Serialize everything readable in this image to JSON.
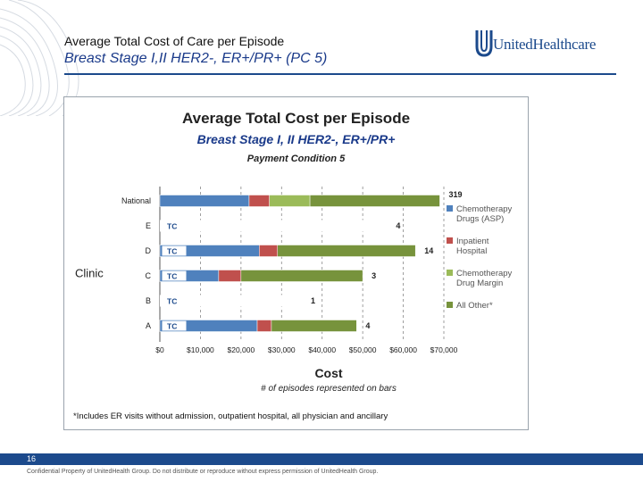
{
  "slide": {
    "title": "Average Total Cost of Care per Episode",
    "subtitle": "Breast Stage I,II HER2-, ER+/PR+ (PC 5)",
    "logo_text": "UnitedHealthcare",
    "page_number": "16",
    "confidential": "Confidential Property of UnitedHealth Group. Do not distribute or reproduce without express permission of UnitedHealth Group.",
    "brand_color": "#1c4a8c"
  },
  "chart_data": {
    "type": "bar",
    "orientation": "horizontal",
    "stacked": true,
    "title": "Average Total Cost per Episode",
    "subtitle": "Breast Stage I, II HER2-, ER+/PR+",
    "subtitle2": "Payment Condition 5",
    "xlabel": "Cost",
    "xlabel_sub": "# of episodes represented on bars",
    "ylabel": "Clinic",
    "xlim": [
      0,
      70000
    ],
    "xticks": [
      "$0",
      "$10,000",
      "$20,000",
      "$30,000",
      "$40,000",
      "$50,000",
      "$60,000",
      "$70,000"
    ],
    "categories": [
      "National",
      "E",
      "D",
      "C",
      "B",
      "A"
    ],
    "episode_counts": [
      "319",
      "4",
      "14",
      "3",
      "1",
      "4"
    ],
    "tc_labels": [
      "",
      "TC",
      "TC",
      "TC",
      "TC",
      "TC"
    ],
    "series": [
      {
        "name": "Chemotherapy Drugs (ASP)",
        "color": "#4f81bd",
        "values": [
          22000,
          0,
          24500,
          14500,
          0,
          24000
        ]
      },
      {
        "name": "Inpatient Hospital",
        "color": "#c0504d",
        "values": [
          5000,
          0,
          4500,
          5500,
          0,
          3500
        ]
      },
      {
        "name": "Chemotherapy Drug Margin",
        "color": "#9bbb59",
        "values": [
          10000,
          0,
          0,
          0,
          0,
          0
        ]
      },
      {
        "name": "All Other*",
        "color": "#77933c",
        "values": [
          32000,
          0,
          34000,
          30000,
          0,
          21000
        ]
      }
    ],
    "hidden_totals": [
      null,
      56000,
      null,
      null,
      35000,
      null
    ],
    "legend_position": "right",
    "footnote": "*Includes ER visits without admission, outpatient hospital, all physician and ancillary"
  }
}
